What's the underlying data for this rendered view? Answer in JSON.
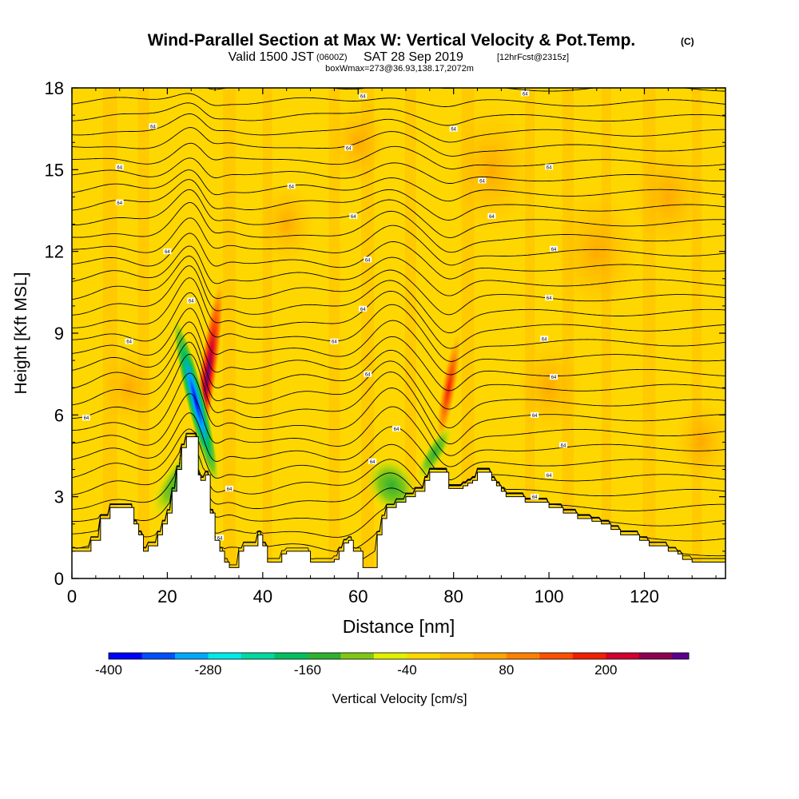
{
  "title": {
    "main": "Wind-Parallel Section at Max W: Vertical Velocity & Pot.Temp.",
    "copyright": "(C)",
    "valid_prefix": "Valid 1500 JST",
    "valid_z": "(0600Z)",
    "valid_date": "SAT 28 Sep 2019",
    "forecast": "[12hrFcst@2315z]",
    "boxw": "boxWmax=273@36.93,138.17,2072m"
  },
  "chart_data": {
    "type": "heatmap",
    "xlabel": "Distance [nm]",
    "ylabel": "Height [Kft MSL]",
    "xlim": [
      0,
      137
    ],
    "ylim": [
      0,
      18
    ],
    "x_ticks": [
      0,
      20,
      40,
      60,
      80,
      100,
      120
    ],
    "y_ticks": [
      0,
      3,
      6,
      9,
      12,
      15,
      18
    ],
    "background_value_cm_s": -20,
    "colorbar": {
      "label": "Vertical Velocity [cm/s]",
      "ticks": [
        -400,
        -280,
        -160,
        -40,
        80,
        200
      ],
      "bins": [
        {
          "from": -400,
          "to": -360,
          "color": "#0000ff"
        },
        {
          "from": -360,
          "to": -320,
          "color": "#0050ff"
        },
        {
          "from": -320,
          "to": -280,
          "color": "#00a8ff"
        },
        {
          "from": -280,
          "to": -240,
          "color": "#00e8e8"
        },
        {
          "from": -240,
          "to": -200,
          "color": "#00d8a0"
        },
        {
          "from": -200,
          "to": -160,
          "color": "#00c060"
        },
        {
          "from": -160,
          "to": -120,
          "color": "#30b030"
        },
        {
          "from": -120,
          "to": -80,
          "color": "#80c818"
        },
        {
          "from": -80,
          "to": -40,
          "color": "#e0f000"
        },
        {
          "from": -40,
          "to": 0,
          "color": "#ffd700"
        },
        {
          "from": 0,
          "to": 40,
          "color": "#ffbf00"
        },
        {
          "from": 40,
          "to": 80,
          "color": "#ffa500"
        },
        {
          "from": 80,
          "to": 120,
          "color": "#ff8000"
        },
        {
          "from": 120,
          "to": 160,
          "color": "#ff5000"
        },
        {
          "from": 160,
          "to": 200,
          "color": "#f02000"
        },
        {
          "from": 200,
          "to": 240,
          "color": "#d00030"
        },
        {
          "from": 240,
          "to": 280,
          "color": "#900050"
        },
        {
          "from": 280,
          "to": 300,
          "color": "#5a0090"
        }
      ]
    },
    "terrain": [
      [
        0,
        1.0
      ],
      [
        2,
        1.0
      ],
      [
        4,
        1.4
      ],
      [
        6,
        2.2
      ],
      [
        8,
        2.6
      ],
      [
        11,
        2.6
      ],
      [
        13,
        2.0
      ],
      [
        14,
        1.6
      ],
      [
        15,
        1.0
      ],
      [
        16,
        1.2
      ],
      [
        18,
        1.6
      ],
      [
        19,
        2.0
      ],
      [
        20,
        2.4
      ],
      [
        21,
        3.2
      ],
      [
        22,
        4.0
      ],
      [
        23,
        4.8
      ],
      [
        24,
        5.2
      ],
      [
        25.5,
        5.2
      ],
      [
        26.5,
        3.8
      ],
      [
        27,
        3.6
      ],
      [
        28,
        3.8
      ],
      [
        29,
        2.4
      ],
      [
        30,
        1.4
      ],
      [
        31,
        1.0
      ],
      [
        32,
        0.6
      ],
      [
        33,
        0.4
      ],
      [
        34,
        0.4
      ],
      [
        35,
        1.0
      ],
      [
        36,
        1.2
      ],
      [
        37,
        1.2
      ],
      [
        38,
        1.2
      ],
      [
        39,
        1.6
      ],
      [
        40,
        1.2
      ],
      [
        41,
        0.6
      ],
      [
        42,
        0.6
      ],
      [
        44,
        0.9
      ],
      [
        45,
        1.0
      ],
      [
        46,
        1.0
      ],
      [
        49,
        1.0
      ],
      [
        50,
        0.6
      ],
      [
        53,
        0.6
      ],
      [
        55,
        0.7
      ],
      [
        56,
        1.0
      ],
      [
        57,
        1.3
      ],
      [
        58,
        1.4
      ],
      [
        59,
        1.0
      ],
      [
        60,
        1.0
      ],
      [
        61,
        0.4
      ],
      [
        63,
        0.4
      ],
      [
        64,
        1.6
      ],
      [
        65,
        2.2
      ],
      [
        66,
        2.6
      ],
      [
        68,
        2.8
      ],
      [
        70,
        3.0
      ],
      [
        72,
        3.2
      ],
      [
        74,
        3.6
      ],
      [
        75,
        3.9
      ],
      [
        78,
        3.9
      ],
      [
        79,
        3.3
      ],
      [
        81,
        3.3
      ],
      [
        82,
        3.4
      ],
      [
        83,
        3.5
      ],
      [
        84,
        3.6
      ],
      [
        85,
        3.9
      ],
      [
        87,
        3.9
      ],
      [
        88,
        3.6
      ],
      [
        89,
        3.4
      ],
      [
        90,
        3.2
      ],
      [
        91,
        3.0
      ],
      [
        93,
        3.0
      ],
      [
        94,
        3.0
      ],
      [
        95,
        2.8
      ],
      [
        97,
        2.8
      ],
      [
        100,
        2.6
      ],
      [
        103,
        2.4
      ],
      [
        106,
        2.2
      ],
      [
        109,
        2.1
      ],
      [
        111,
        2.0
      ],
      [
        113,
        1.8
      ],
      [
        115,
        1.6
      ],
      [
        117,
        1.6
      ],
      [
        119,
        1.4
      ],
      [
        121,
        1.2
      ],
      [
        123,
        1.2
      ],
      [
        125,
        1.0
      ],
      [
        127,
        0.9
      ],
      [
        128,
        0.7
      ],
      [
        130,
        0.6
      ],
      [
        137,
        0.6
      ]
    ],
    "features": [
      {
        "type": "updraft",
        "x": 28.5,
        "y": 7.5,
        "peak_cm_s": 273
      },
      {
        "type": "downdraft",
        "x": 26.0,
        "y": 6.5,
        "peak_cm_s": -380
      },
      {
        "type": "downdraft",
        "x": 67.0,
        "y": 3.4,
        "peak_cm_s": -150
      },
      {
        "type": "updraft",
        "x": 79.0,
        "y": 7.0,
        "peak_cm_s": 140
      }
    ],
    "isentrope_label": "64"
  }
}
